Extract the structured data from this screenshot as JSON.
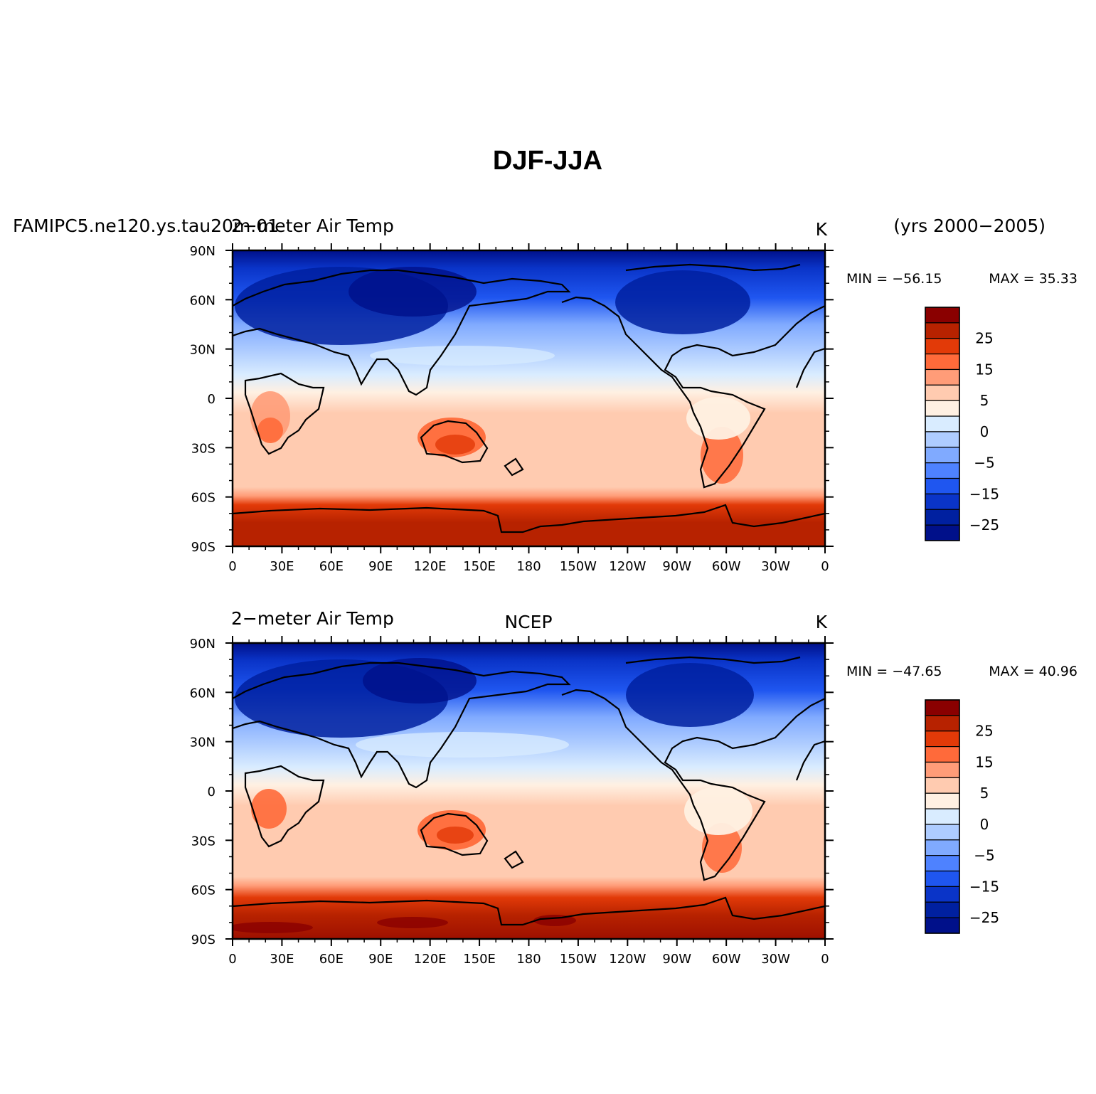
{
  "figure": {
    "title": "DJF-JJA",
    "years_label": "(yrs 2000−2005)"
  },
  "panels": [
    {
      "id": "top",
      "left_title": "FAMIPC5.ne120.ys.tau20m.01",
      "left_title_overlap": "2−meter Air Temp",
      "center_title": "",
      "units": "K",
      "min_label": "MIN = −56.15",
      "max_label": "MAX =   35.33"
    },
    {
      "id": "bottom",
      "left_title": "2−meter Air Temp",
      "left_title_overlap": "",
      "center_title": "NCEP",
      "units": "K",
      "min_label": "MIN = −47.65",
      "max_label": "MAX =   40.96"
    }
  ],
  "axes": {
    "x_tick_labels": [
      "0",
      "30E",
      "60E",
      "90E",
      "120E",
      "150E",
      "180",
      "150W",
      "120W",
      "90W",
      "60W",
      "30W",
      "0"
    ],
    "y_tick_labels": [
      "90N",
      "60N",
      "30N",
      "0",
      "30S",
      "60S",
      "90S"
    ]
  },
  "colorbar": {
    "labels": [
      "25",
      "15",
      "5",
      "0",
      "−5",
      "−15",
      "−25"
    ],
    "colors": [
      "#8a0000",
      "#b72200",
      "#e23a08",
      "#ff6a3a",
      "#ff9c78",
      "#ffcbb0",
      "#fff0e2",
      "#d9ecff",
      "#aeccff",
      "#80aaff",
      "#4e82ff",
      "#1f56f0",
      "#0a34c8",
      "#0020a0",
      "#00108a"
    ]
  },
  "chart_data": {
    "type": "heatmap",
    "title": "DJF-JJA",
    "variable": "2−meter Air Temp",
    "units": "K",
    "x_range": [
      0,
      360
    ],
    "y_range": [
      -90,
      90
    ],
    "contour_levels": [
      -30,
      -25,
      -20,
      -15,
      -10,
      -5,
      -2,
      0,
      2,
      5,
      10,
      15,
      20,
      25,
      30
    ],
    "panels": [
      {
        "name": "FAMIPC5.ne120.ys.tau20m.01",
        "min": -56.15,
        "max": 35.33
      },
      {
        "name": "NCEP",
        "min": -47.65,
        "max": 40.96
      }
    ]
  }
}
